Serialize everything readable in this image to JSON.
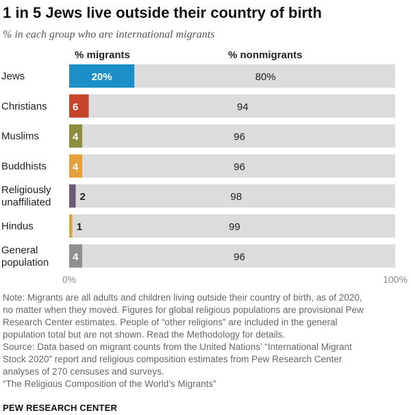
{
  "title": "1 in 5 Jews live outside their country of birth",
  "subtitle": "% in each group who are international migrants",
  "chart_data": {
    "type": "bar",
    "orientation": "horizontal",
    "stacked": true,
    "column_headers": [
      "% migrants",
      "% nonmigrants"
    ],
    "categories": [
      "Jews",
      "Christians",
      "Muslims",
      "Buddhists",
      "Religiously unaffiliated",
      "Hindus",
      "General population"
    ],
    "category_lines": [
      [
        "Jews"
      ],
      [
        "Christians"
      ],
      [
        "Muslims"
      ],
      [
        "Buddhists"
      ],
      [
        "Religiously",
        "unaffiliated"
      ],
      [
        "Hindus"
      ],
      [
        "General",
        "population"
      ]
    ],
    "series": [
      {
        "name": "% migrants",
        "values": [
          20,
          6,
          4,
          4,
          2,
          1,
          4
        ],
        "labels": [
          "20%",
          "6",
          "4",
          "4",
          "2",
          "1",
          "4"
        ],
        "colors": [
          "#1b8fc6",
          "#c9452a",
          "#8c8e3d",
          "#e6a03a",
          "#6a5a7a",
          "#dba93b",
          "#8f8f8f"
        ]
      },
      {
        "name": "% nonmigrants",
        "values": [
          80,
          94,
          96,
          96,
          98,
          99,
          96
        ],
        "labels": [
          "80%",
          "94",
          "96",
          "96",
          "98",
          "99",
          "96"
        ],
        "color": "#dcdcdc"
      }
    ],
    "xlim": [
      0,
      100
    ],
    "x_tick_labels": [
      "0%",
      "100%"
    ]
  },
  "notes": [
    "Note: Migrants are all adults and children living outside their country of birth, as of 2020,",
    "no matter when they moved. Figures for global religious populations are provisional Pew",
    "Research Center estimates. People of “other religions” are included in the general",
    "population total but are not shown. Read the Methodology for details.",
    "Source: Data based on migrant counts from the United Nations’ “International Migrant",
    "Stock 2020” report and religious composition estimates from Pew Research Center",
    "analyses of 270 censuses and surveys.",
    "“The Religious Composition of the World’s Migrants”"
  ],
  "source_brand": "PEW RESEARCH CENTER"
}
